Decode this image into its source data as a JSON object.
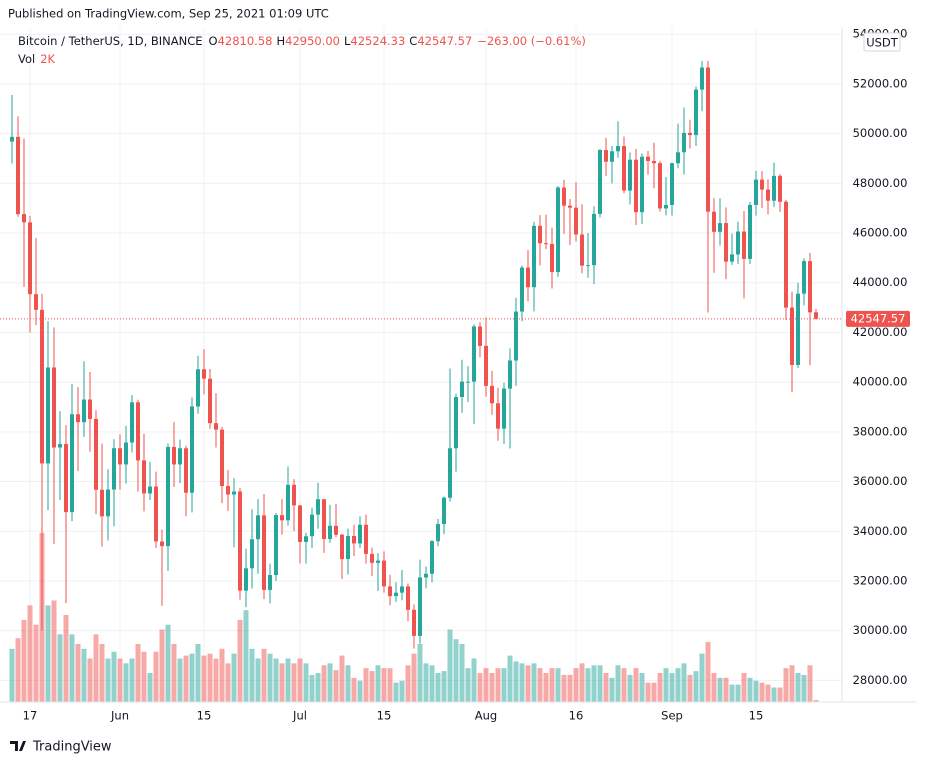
{
  "chart_data": {
    "type": "candlestick",
    "published": "Published on TradingView.com, Sep 25, 2021 01:09 UTC",
    "title": "Bitcoin / TetherUS, 1D, BINANCE",
    "ohlc_legend": [
      {
        "key": "O",
        "text": "42810.58"
      },
      {
        "key": "H",
        "text": "42950.00"
      },
      {
        "key": "L",
        "text": "42524.33"
      },
      {
        "key": "C",
        "text": "42547.57"
      }
    ],
    "change": "−263.00 (−0.61%)",
    "volume_legend": {
      "key": "Vol",
      "text": "2K"
    },
    "currency": "USDT",
    "brand": "TradingView",
    "up_color": "#26a69a",
    "down_color": "#ef5350",
    "volume_opacity": 0.5,
    "grid": true,
    "categories": [
      null,
      null,
      null,
      "17",
      null,
      null,
      null,
      null,
      null,
      null,
      null,
      null,
      null,
      null,
      null,
      null,
      null,
      null,
      "Jun",
      null,
      null,
      null,
      null,
      null,
      null,
      null,
      null,
      null,
      null,
      null,
      null,
      null,
      "15",
      null,
      null,
      null,
      null,
      null,
      null,
      null,
      null,
      null,
      null,
      null,
      null,
      null,
      null,
      null,
      "Jul",
      null,
      null,
      null,
      null,
      null,
      null,
      null,
      null,
      null,
      null,
      null,
      null,
      null,
      "15",
      null,
      null,
      null,
      null,
      null,
      null,
      null,
      null,
      null,
      null,
      null,
      null,
      null,
      null,
      null,
      null,
      "Aug",
      null,
      null,
      null,
      null,
      null,
      null,
      null,
      null,
      null,
      null,
      null,
      null,
      null,
      null,
      "16",
      null,
      null,
      null,
      null,
      null,
      null,
      null,
      null,
      null,
      null,
      null,
      null,
      null,
      null,
      null,
      "Sep",
      null,
      null,
      null,
      null,
      null,
      null,
      null,
      null,
      null,
      null,
      null,
      null,
      null,
      "15",
      null,
      null,
      null,
      null,
      null,
      null,
      null,
      null,
      null,
      null
    ],
    "open": [
      49680,
      49870,
      46760,
      46430,
      43540,
      42910,
      36730,
      40590,
      37370,
      37510,
      34770,
      38710,
      38390,
      39300,
      38520,
      35670,
      34600,
      35680,
      37340,
      36690,
      37570,
      39190,
      36850,
      35520,
      35800,
      33590,
      33400,
      37390,
      36690,
      37340,
      35550,
      39020,
      40520,
      40140,
      38350,
      38090,
      35820,
      35480,
      35600,
      31610,
      32510,
      33680,
      34640,
      31640,
      32240,
      34650,
      34440,
      35870,
      35040,
      33570,
      33800,
      34670,
      35290,
      33690,
      34220,
      33860,
      32880,
      33810,
      33510,
      34260,
      33090,
      32730,
      32820,
      31780,
      31390,
      31530,
      31780,
      30840,
      29790,
      32140,
      32290,
      33600,
      34290,
      35350,
      37340,
      39400,
      40020,
      40020,
      42240,
      41460,
      39850,
      39150,
      38130,
      39740,
      40870,
      42840,
      44610,
      43820,
      46290,
      45590,
      45560,
      44430,
      47830,
      47100,
      47020,
      45940,
      44690,
      44710,
      46770,
      49340,
      48870,
      49290,
      49500,
      47710,
      48950,
      46840,
      49070,
      48900,
      48810,
      46990,
      47130,
      48810,
      49250,
      50030,
      49940,
      51770,
      52660,
      46860,
      46050,
      46400,
      44850,
      45140,
      46060,
      44960,
      47130,
      48150,
      47750,
      47300,
      48300,
      47260,
      43000,
      40690,
      43560,
      44870,
      42810.58
    ],
    "high": [
      51560,
      50700,
      49800,
      46690,
      45800,
      43550,
      42450,
      42200,
      38830,
      38270,
      39920,
      39800,
      40840,
      40410,
      38870,
      37530,
      36490,
      37700,
      37900,
      38240,
      39480,
      39290,
      37920,
      36790,
      36400,
      34070,
      37530,
      38390,
      37690,
      37440,
      39380,
      41060,
      41330,
      40530,
      39560,
      38200,
      36460,
      36140,
      35750,
      33300,
      34880,
      35300,
      35500,
      32700,
      34740,
      35300,
      36600,
      36100,
      35060,
      33940,
      34950,
      35950,
      35300,
      35060,
      35100,
      33900,
      34100,
      34260,
      34600,
      34670,
      33340,
      33120,
      33190,
      32250,
      31950,
      32440,
      31900,
      31060,
      32860,
      32580,
      33650,
      34500,
      35400,
      40550,
      39540,
      40900,
      40640,
      42320,
      42410,
      42600,
      40460,
      39780,
      39970,
      41360,
      43390,
      44700,
      45310,
      46450,
      46720,
      46740,
      46220,
      47890,
      48140,
      47370,
      48050,
      47160,
      46000,
      47080,
      49380,
      49830,
      49500,
      50500,
      49880,
      49240,
      49380,
      49200,
      49300,
      49640,
      48910,
      48250,
      48840,
      50400,
      51050,
      50560,
      51900,
      52920,
      52920,
      47400,
      47400,
      47030,
      45980,
      46460,
      46880,
      47250,
      48500,
      48490,
      48160,
      48840,
      48370,
      47330,
      43640,
      44000,
      44980,
      45200,
      42950
    ],
    "low": [
      48800,
      46650,
      43830,
      42000,
      42290,
      30000,
      34850,
      33490,
      35260,
      31110,
      34410,
      36420,
      37800,
      37200,
      34690,
      33380,
      33630,
      34200,
      35670,
      35920,
      37170,
      35600,
      34800,
      35260,
      33330,
      31000,
      32400,
      35780,
      35940,
      34600,
      34760,
      38730,
      39510,
      38120,
      37370,
      35130,
      34820,
      33350,
      31250,
      30950,
      31690,
      32290,
      31270,
      31100,
      32000,
      33860,
      34230,
      34000,
      32710,
      32700,
      33320,
      34100,
      33130,
      33530,
      33770,
      32080,
      32260,
      33000,
      33320,
      32700,
      32200,
      31600,
      31530,
      31020,
      31160,
      31220,
      30380,
      29280,
      29480,
      31700,
      31950,
      33400,
      33880,
      35200,
      36400,
      38770,
      39200,
      38320,
      41000,
      39420,
      38690,
      37640,
      37510,
      37330,
      39850,
      42450,
      43260,
      42850,
      44700,
      45350,
      43770,
      44240,
      45970,
      45520,
      45660,
      44380,
      44200,
      43950,
      46620,
      48300,
      48000,
      49030,
      47600,
      47150,
      46320,
      46370,
      48350,
      47800,
      46860,
      46710,
      46700,
      48600,
      48350,
      49400,
      49500,
      50900,
      42800,
      44400,
      45500,
      44140,
      44720,
      44750,
      43370,
      44750,
      46700,
      47000,
      46750,
      47050,
      46850,
      42500,
      39600,
      40570,
      43090,
      40680,
      42524.33
    ],
    "close": [
      49870,
      46760,
      46430,
      43540,
      42910,
      36730,
      40590,
      37370,
      37510,
      34770,
      38710,
      38390,
      39300,
      38520,
      35670,
      34600,
      35680,
      37340,
      36690,
      37570,
      39190,
      36850,
      35520,
      35800,
      33590,
      33400,
      37390,
      36690,
      37340,
      35550,
      39020,
      40520,
      40140,
      38350,
      38090,
      35820,
      35480,
      35600,
      31610,
      32510,
      33680,
      34640,
      31640,
      32240,
      34650,
      34440,
      35870,
      35040,
      33570,
      33800,
      34670,
      35290,
      33690,
      34220,
      33860,
      32880,
      33810,
      33510,
      34260,
      33090,
      32730,
      32820,
      31780,
      31390,
      31530,
      31780,
      30840,
      29790,
      32140,
      32290,
      33600,
      34290,
      35350,
      37340,
      39400,
      40020,
      40020,
      42240,
      41460,
      39850,
      39150,
      38130,
      39740,
      40870,
      42840,
      44610,
      43820,
      46290,
      45590,
      45560,
      44430,
      47830,
      47100,
      47020,
      45940,
      44690,
      44710,
      46770,
      49340,
      48870,
      49290,
      49500,
      47710,
      48950,
      46840,
      49070,
      48900,
      48810,
      46990,
      47130,
      48810,
      49250,
      50030,
      49940,
      51770,
      52660,
      46860,
      46050,
      46400,
      44850,
      45140,
      46060,
      44960,
      47130,
      48150,
      47750,
      47300,
      48300,
      47260,
      43000,
      40690,
      43560,
      44870,
      42810.58,
      42547.57
    ],
    "volume": [
      55000,
      66000,
      85000,
      100000,
      80000,
      175000,
      100000,
      105000,
      70000,
      90000,
      70000,
      60000,
      55000,
      45000,
      70000,
      60000,
      45000,
      52000,
      45000,
      40000,
      45000,
      60000,
      52000,
      30000,
      52000,
      75000,
      80000,
      60000,
      45000,
      48000,
      50000,
      60000,
      48000,
      50000,
      45000,
      55000,
      40000,
      50000,
      85000,
      95000,
      55000,
      45000,
      55000,
      50000,
      45000,
      40000,
      45000,
      40000,
      45000,
      40000,
      28000,
      30000,
      38000,
      40000,
      33000,
      48000,
      38000,
      25000,
      22000,
      35000,
      32000,
      38000,
      35000,
      35000,
      20000,
      22000,
      38000,
      50000,
      60000,
      40000,
      38000,
      30000,
      32000,
      75000,
      65000,
      60000,
      35000,
      45000,
      30000,
      35000,
      30000,
      35000,
      35000,
      48000,
      42000,
      40000,
      38000,
      40000,
      35000,
      30000,
      35000,
      35000,
      28000,
      28000,
      35000,
      40000,
      35000,
      38000,
      38000,
      30000,
      25000,
      38000,
      35000,
      28000,
      35000,
      30000,
      20000,
      20000,
      30000,
      35000,
      30000,
      35000,
      40000,
      28000,
      32000,
      50000,
      62000,
      30000,
      25000,
      25000,
      18000,
      18000,
      30000,
      25000,
      22000,
      20000,
      18000,
      15000,
      15000,
      35000,
      38000,
      30000,
      28000,
      38000,
      2000
    ],
    "ylim": [
      27130,
      54250
    ],
    "yticks": [
      {
        "value": 28000,
        "label": "28000.00"
      },
      {
        "value": 30000,
        "label": "30000.00"
      },
      {
        "value": 32000,
        "label": "32000.00"
      },
      {
        "value": 34000,
        "label": "34000.00"
      },
      {
        "value": 36000,
        "label": "36000.00"
      },
      {
        "value": 38000,
        "label": "38000.00"
      },
      {
        "value": 40000,
        "label": "40000.00"
      },
      {
        "value": 42000,
        "label": "42000.00"
      },
      {
        "value": 44000,
        "label": "44000.00"
      },
      {
        "value": 46000,
        "label": "46000.00"
      },
      {
        "value": 48000,
        "label": "48000.00"
      },
      {
        "value": 50000,
        "label": "50000.00"
      },
      {
        "value": 52000,
        "label": "52000.00"
      },
      {
        "value": 54000,
        "label": "54000.00"
      }
    ],
    "vlim": [
      0,
      240000
    ]
  }
}
